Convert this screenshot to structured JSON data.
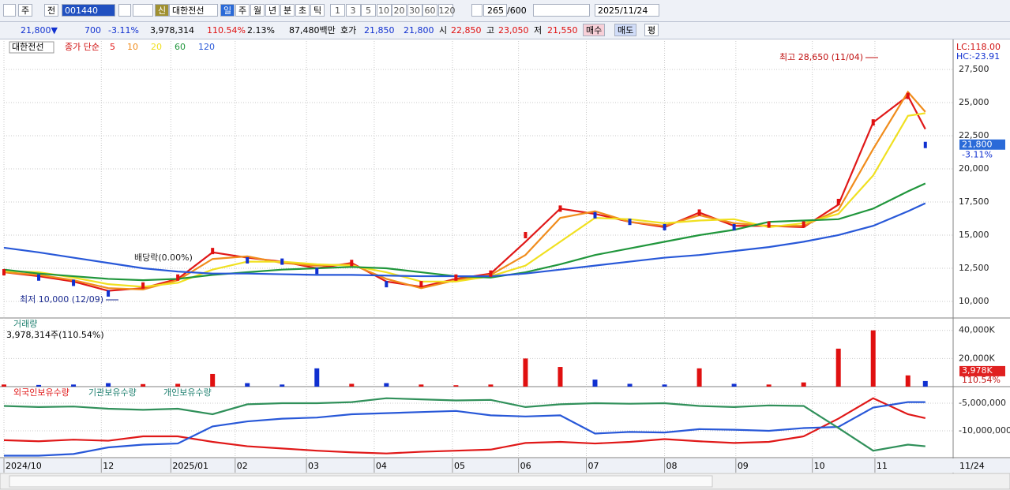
{
  "toolbar": {
    "market": "주",
    "mode": "전",
    "code": "001440",
    "badge": "신",
    "name": "대한전선",
    "periods": [
      "일",
      "주",
      "월",
      "년",
      "분",
      "초",
      "틱"
    ],
    "intervals": [
      "1",
      "3",
      "5",
      "10",
      "20",
      "30",
      "60",
      "120"
    ],
    "count": "265",
    "max": "/600",
    "date": "2025/11/24"
  },
  "quote": {
    "price": "21,800▼",
    "change": "700",
    "rate": "-3.11%",
    "volume": "3,978,314",
    "volume_ratio": "110.54%",
    "turnover": "2.13%",
    "amount": "87,480백만",
    "bid_label": "호가",
    "ask": "21,850",
    "bid": "21,800",
    "open_label": "시",
    "open": "22,850",
    "high_label": "고",
    "high": "23,050",
    "low_label": "저",
    "low": "21,550",
    "buy": "매수",
    "sell": "매도",
    "avg": "평"
  },
  "chart_data": [
    {
      "type": "line",
      "stock": "대한전선",
      "legend_title": "종가 단순",
      "x": [
        0,
        2,
        4,
        6,
        8,
        10,
        12,
        14,
        16,
        18,
        20,
        22,
        24,
        26,
        28,
        30,
        32,
        34,
        36,
        38,
        40,
        42,
        44,
        46,
        48,
        50,
        52,
        53
      ],
      "xlim": [
        0,
        54.6
      ],
      "ylim": [
        8750,
        29640
      ],
      "yticks": [
        {
          "value": 10000,
          "label": "10,000"
        },
        {
          "value": 12500,
          "label": "12,500"
        },
        {
          "value": 15000,
          "label": "15,000"
        },
        {
          "value": 17500,
          "label": "17,500"
        },
        {
          "value": 20000,
          "label": "20,000"
        },
        {
          "value": 22500,
          "label": "22,500"
        },
        {
          "value": 25000,
          "label": "25,000"
        },
        {
          "value": 27500,
          "label": "27,500"
        }
      ],
      "close": [
        12200,
        11800,
        11400,
        10600,
        11200,
        11800,
        13800,
        13100,
        13000,
        12300,
        12900,
        11300,
        11300,
        11800,
        12100,
        15000,
        17000,
        16500,
        16000,
        15600,
        16700,
        15600,
        15800,
        15800,
        17500,
        23500,
        25500,
        21800
      ],
      "up_color": "#e01010",
      "down_color": "#1030d0",
      "series": [
        {
          "name": "5",
          "color": "#e01818",
          "values": [
            12200,
            11900,
            11500,
            10800,
            11000,
            11700,
            13700,
            13300,
            13000,
            12500,
            12900,
            11500,
            11100,
            11700,
            12100,
            14500,
            17000,
            16600,
            16000,
            15600,
            16700,
            15700,
            15700,
            15600,
            17300,
            23500,
            25500,
            23000
          ]
        },
        {
          "name": "10",
          "color": "#f08c1c",
          "values": [
            12200,
            12000,
            11600,
            11000,
            10900,
            11600,
            13200,
            13400,
            12900,
            12700,
            12800,
            11700,
            11000,
            11600,
            12000,
            13500,
            16300,
            16800,
            16000,
            15700,
            16500,
            15900,
            15700,
            15700,
            16900,
            21500,
            25800,
            24300
          ]
        },
        {
          "name": "20",
          "color": "#f0e020",
          "values": [
            12300,
            12200,
            11800,
            11300,
            11100,
            11400,
            12400,
            13000,
            13000,
            12800,
            12700,
            12200,
            11500,
            11500,
            11900,
            12700,
            14500,
            16300,
            16200,
            15900,
            16100,
            16200,
            15600,
            15900,
            16600,
            19500,
            24000,
            24200
          ]
        },
        {
          "name": "60",
          "color": "#20963c",
          "values": [
            12400,
            12100,
            11900,
            11700,
            11600,
            11700,
            12000,
            12200,
            12400,
            12500,
            12600,
            12500,
            12200,
            11900,
            11800,
            12200,
            12800,
            13500,
            14000,
            14500,
            15000,
            15400,
            16000,
            16100,
            16200,
            17000,
            18300,
            18900
          ]
        },
        {
          "name": "120",
          "color": "#2858d8",
          "values": [
            14050,
            13700,
            13300,
            12900,
            12500,
            12250,
            12100,
            12100,
            12050,
            12000,
            12000,
            11950,
            11900,
            11900,
            11900,
            12100,
            12400,
            12700,
            13000,
            13300,
            13500,
            13800,
            14100,
            14500,
            15000,
            15700,
            16800,
            17400
          ]
        }
      ],
      "annotations": [
        "최고 28,650 (11/04)",
        "최저 10,000 (12/09)",
        "배당락(0.00%)"
      ],
      "lc": "LC:118.00",
      "hc": "HC:-23.91",
      "price_label": "21,800",
      "change_label": "-3.11%"
    },
    {
      "type": "bar",
      "title": "거래량",
      "summary": "3,978,314주(110.54%)",
      "x": [
        0,
        2,
        4,
        6,
        8,
        10,
        12,
        14,
        16,
        18,
        20,
        22,
        24,
        26,
        28,
        30,
        32,
        34,
        36,
        38,
        40,
        42,
        44,
        46,
        48,
        50,
        52,
        53
      ],
      "xlim": [
        0,
        54.6
      ],
      "ylim": [
        0,
        48800
      ],
      "yticks": [
        {
          "value": 20000,
          "label": "20,000K"
        },
        {
          "value": 40000,
          "label": "40,000K"
        }
      ],
      "values": [
        1500,
        1200,
        1500,
        2500,
        1800,
        2000,
        9000,
        2500,
        1500,
        13000,
        2000,
        2500,
        1500,
        1000,
        1500,
        20000,
        14000,
        5000,
        2000,
        1500,
        13000,
        2000,
        1500,
        3000,
        27000,
        40000,
        8000,
        3978
      ],
      "last_label": "3,978K",
      "ratio_label": "110.54%"
    },
    {
      "type": "line",
      "x": [
        0,
        2,
        4,
        6,
        8,
        10,
        12,
        14,
        16,
        18,
        20,
        22,
        24,
        26,
        28,
        30,
        32,
        34,
        36,
        38,
        40,
        42,
        44,
        46,
        48,
        50,
        52,
        53
      ],
      "xlim": [
        0,
        54.6
      ],
      "ylim": [
        -14860000,
        -2000000
      ],
      "yticks": [
        {
          "value": -10000000,
          "label": "-10,000,000"
        },
        {
          "value": -5000000,
          "label": "-5,000,000"
        }
      ],
      "xticks": [
        {
          "value": 0,
          "label": "2024/10"
        },
        {
          "value": 5.6,
          "label": "12"
        },
        {
          "value": 9.6,
          "label": "2025/01"
        },
        {
          "value": 13.3,
          "label": "02"
        },
        {
          "value": 17.4,
          "label": "03"
        },
        {
          "value": 21.3,
          "label": "04"
        },
        {
          "value": 25.8,
          "label": "05"
        },
        {
          "value": 29.6,
          "label": "06"
        },
        {
          "value": 33.5,
          "label": "07"
        },
        {
          "value": 38.0,
          "label": "08"
        },
        {
          "value": 42.1,
          "label": "09"
        },
        {
          "value": 46.5,
          "label": "10"
        },
        {
          "value": 50.1,
          "label": "11"
        }
      ],
      "end_label": "11/24",
      "series": [
        {
          "name": "외국인보유수량",
          "color": "#e01818",
          "values": [
            -11700000,
            -11900000,
            -11600000,
            -11800000,
            -11000000,
            -11000000,
            -12000000,
            -12800000,
            -13200000,
            -13600000,
            -13900000,
            -14100000,
            -13800000,
            -13600000,
            -13400000,
            -12200000,
            -12000000,
            -12300000,
            -12000000,
            -11500000,
            -11900000,
            -12200000,
            -12000000,
            -11000000,
            -7800000,
            -4100000,
            -7000000,
            -7700000
          ]
        },
        {
          "name": "기관보유수량",
          "color": "#2858d8",
          "values": [
            -14500000,
            -14500000,
            -14200000,
            -13000000,
            -12500000,
            -12300000,
            -9200000,
            -8300000,
            -7800000,
            -7600000,
            -7000000,
            -6800000,
            -6600000,
            -6400000,
            -7200000,
            -7400000,
            -7200000,
            -10500000,
            -10200000,
            -10300000,
            -9700000,
            -9800000,
            -10000000,
            -9500000,
            -9300000,
            -5800000,
            -4800000,
            -4800000
          ]
        },
        {
          "name": "개인보유수량",
          "color": "#30905a",
          "values": [
            -5500000,
            -5700000,
            -5600000,
            -6000000,
            -6200000,
            -6000000,
            -7000000,
            -5200000,
            -5000000,
            -5000000,
            -4800000,
            -4100000,
            -4300000,
            -4500000,
            -4400000,
            -5700000,
            -5200000,
            -5000000,
            -5100000,
            -5000000,
            -5500000,
            -5700000,
            -5400000,
            -5500000,
            -9500000,
            -13600000,
            -12500000,
            -12800000
          ]
        }
      ]
    }
  ]
}
